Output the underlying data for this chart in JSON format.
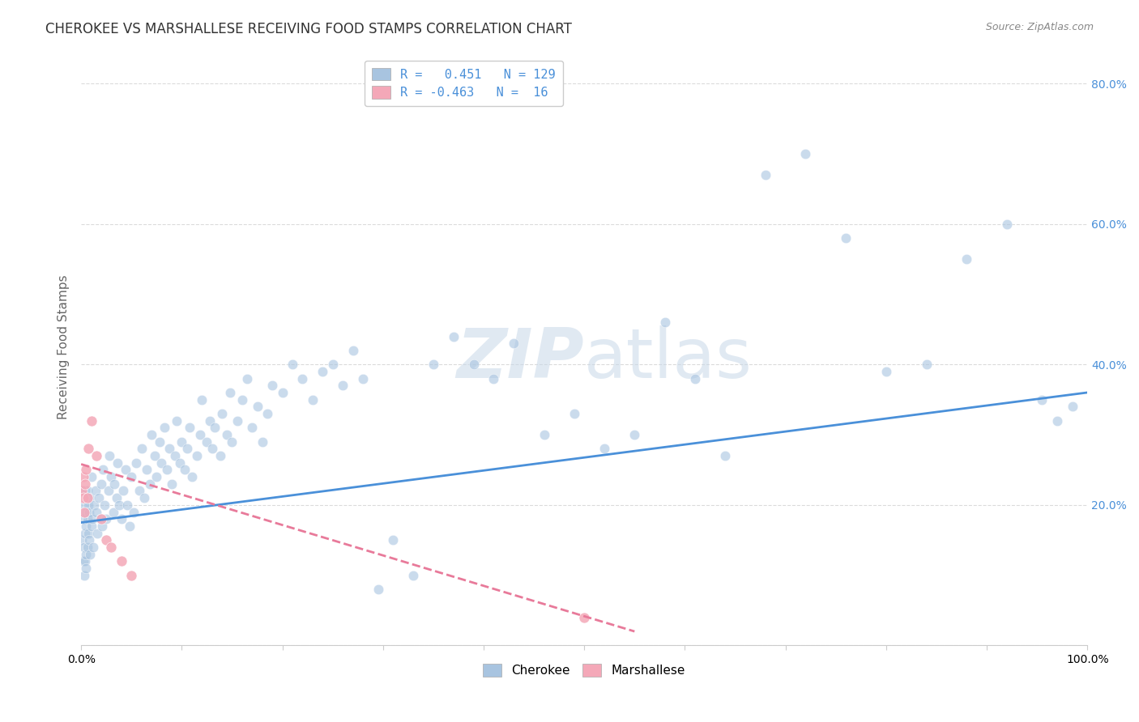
{
  "title": "CHEROKEE VS MARSHALLESE RECEIVING FOOD STAMPS CORRELATION CHART",
  "source": "Source: ZipAtlas.com",
  "ylabel": "Receiving Food Stamps",
  "x_min": 0.0,
  "x_max": 1.0,
  "y_min": 0.0,
  "y_max": 0.85,
  "yticks": [
    0.0,
    0.2,
    0.4,
    0.6,
    0.8
  ],
  "xticks": [
    0.0,
    0.1,
    0.2,
    0.3,
    0.4,
    0.5,
    0.6,
    0.7,
    0.8,
    0.9,
    1.0
  ],
  "xtick_labels": [
    "0.0%",
    "",
    "",
    "",
    "",
    "",
    "",
    "",
    "",
    "",
    "100.0%"
  ],
  "cherokee_R": 0.451,
  "cherokee_N": 129,
  "marshallese_R": -0.463,
  "marshallese_N": 16,
  "cherokee_color": "#a8c4e0",
  "marshallese_color": "#f4a8b8",
  "cherokee_line_color": "#4a90d9",
  "marshallese_line_color": "#e87a9a",
  "watermark_color": "#c8d8e8",
  "background_color": "#ffffff",
  "grid_color": "#cccccc",
  "title_color": "#333333",
  "cherokee_x": [
    0.001,
    0.002,
    0.002,
    0.003,
    0.003,
    0.003,
    0.004,
    0.004,
    0.004,
    0.005,
    0.005,
    0.005,
    0.005,
    0.006,
    0.006,
    0.006,
    0.007,
    0.007,
    0.008,
    0.008,
    0.009,
    0.009,
    0.01,
    0.01,
    0.011,
    0.012,
    0.013,
    0.014,
    0.015,
    0.016,
    0.018,
    0.019,
    0.02,
    0.021,
    0.022,
    0.023,
    0.025,
    0.027,
    0.028,
    0.03,
    0.032,
    0.033,
    0.035,
    0.036,
    0.038,
    0.04,
    0.042,
    0.044,
    0.046,
    0.048,
    0.05,
    0.052,
    0.055,
    0.058,
    0.06,
    0.063,
    0.065,
    0.068,
    0.07,
    0.073,
    0.075,
    0.078,
    0.08,
    0.083,
    0.085,
    0.088,
    0.09,
    0.093,
    0.095,
    0.098,
    0.1,
    0.103,
    0.105,
    0.108,
    0.11,
    0.115,
    0.118,
    0.12,
    0.125,
    0.128,
    0.13,
    0.133,
    0.138,
    0.14,
    0.145,
    0.148,
    0.15,
    0.155,
    0.16,
    0.165,
    0.17,
    0.175,
    0.18,
    0.185,
    0.19,
    0.2,
    0.21,
    0.22,
    0.23,
    0.24,
    0.25,
    0.26,
    0.27,
    0.28,
    0.295,
    0.31,
    0.33,
    0.35,
    0.37,
    0.39,
    0.41,
    0.43,
    0.46,
    0.49,
    0.52,
    0.55,
    0.58,
    0.61,
    0.64,
    0.68,
    0.72,
    0.76,
    0.8,
    0.84,
    0.88,
    0.92,
    0.955,
    0.97,
    0.985
  ],
  "cherokee_y": [
    0.15,
    0.12,
    0.18,
    0.1,
    0.14,
    0.2,
    0.12,
    0.16,
    0.22,
    0.13,
    0.17,
    0.11,
    0.19,
    0.14,
    0.18,
    0.22,
    0.16,
    0.2,
    0.15,
    0.19,
    0.13,
    0.21,
    0.17,
    0.24,
    0.18,
    0.14,
    0.2,
    0.22,
    0.19,
    0.16,
    0.21,
    0.18,
    0.23,
    0.17,
    0.25,
    0.2,
    0.18,
    0.22,
    0.27,
    0.24,
    0.19,
    0.23,
    0.21,
    0.26,
    0.2,
    0.18,
    0.22,
    0.25,
    0.2,
    0.17,
    0.24,
    0.19,
    0.26,
    0.22,
    0.28,
    0.21,
    0.25,
    0.23,
    0.3,
    0.27,
    0.24,
    0.29,
    0.26,
    0.31,
    0.25,
    0.28,
    0.23,
    0.27,
    0.32,
    0.26,
    0.29,
    0.25,
    0.28,
    0.31,
    0.24,
    0.27,
    0.3,
    0.35,
    0.29,
    0.32,
    0.28,
    0.31,
    0.27,
    0.33,
    0.3,
    0.36,
    0.29,
    0.32,
    0.35,
    0.38,
    0.31,
    0.34,
    0.29,
    0.33,
    0.37,
    0.36,
    0.4,
    0.38,
    0.35,
    0.39,
    0.4,
    0.37,
    0.42,
    0.38,
    0.08,
    0.15,
    0.1,
    0.4,
    0.44,
    0.4,
    0.38,
    0.43,
    0.3,
    0.33,
    0.28,
    0.3,
    0.46,
    0.38,
    0.27,
    0.67,
    0.7,
    0.58,
    0.39,
    0.4,
    0.55,
    0.6,
    0.35,
    0.32,
    0.34
  ],
  "marshallese_x": [
    0.001,
    0.002,
    0.002,
    0.003,
    0.004,
    0.005,
    0.006,
    0.007,
    0.01,
    0.015,
    0.02,
    0.025,
    0.03,
    0.04,
    0.05,
    0.5
  ],
  "marshallese_y": [
    0.22,
    0.21,
    0.24,
    0.19,
    0.23,
    0.25,
    0.21,
    0.28,
    0.32,
    0.27,
    0.18,
    0.15,
    0.14,
    0.12,
    0.1,
    0.04
  ],
  "cherokee_trend_x": [
    0.0,
    1.0
  ],
  "cherokee_trend_y_start": 0.175,
  "cherokee_trend_y_end": 0.36,
  "marshallese_trend_x": [
    0.0,
    0.55
  ],
  "marshallese_trend_y_start": 0.258,
  "marshallese_trend_y_end": 0.02,
  "legend_cherokee_label": "Cherokee",
  "legend_marshallese_label": "Marshallese",
  "legend_R_color": "#4a90d9",
  "dot_size": 80,
  "dot_alpha": 0.6,
  "dot_linewidth": 0.5,
  "dot_edgecolor": "#ffffff"
}
